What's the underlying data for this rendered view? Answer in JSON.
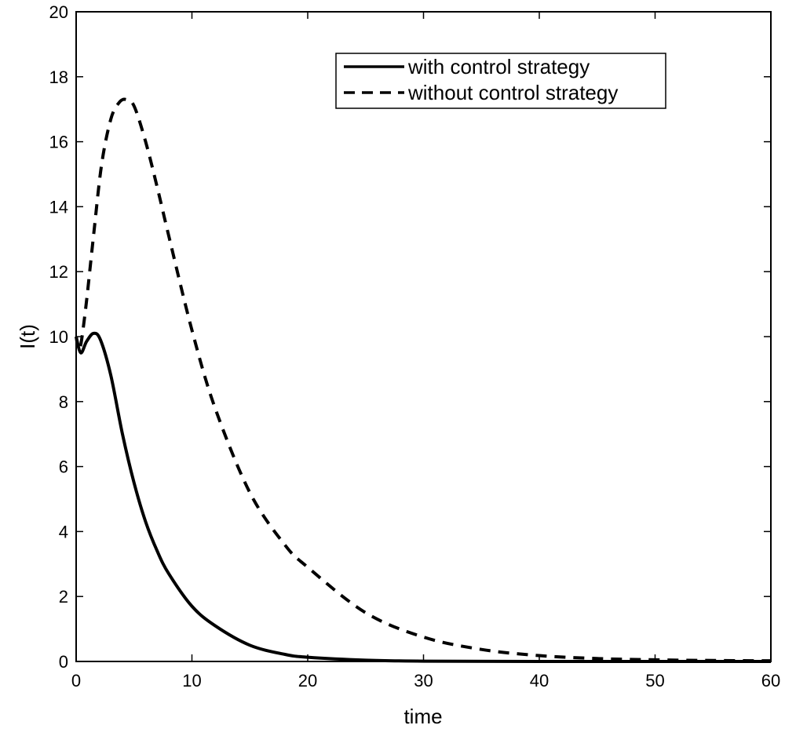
{
  "chart_data": {
    "type": "line",
    "title": "",
    "xlabel": "time",
    "ylabel": "I(t)",
    "xlim": [
      0,
      60
    ],
    "ylim": [
      0,
      20
    ],
    "xticks": [
      0,
      10,
      20,
      30,
      40,
      50,
      60
    ],
    "yticks": [
      0,
      2,
      4,
      6,
      8,
      10,
      12,
      14,
      16,
      18,
      20
    ],
    "grid": false,
    "legend_position": "top-right",
    "series": [
      {
        "name": "with control strategy",
        "style": "solid",
        "color": "#000000",
        "x": [
          0,
          0.4,
          0.9,
          1.5,
          2.1,
          3,
          4,
          5,
          6,
          7,
          8,
          10,
          12,
          15,
          18,
          20,
          25,
          30,
          40,
          50,
          60
        ],
        "y": [
          10,
          9.5,
          9.85,
          10.1,
          9.9,
          8.8,
          7.0,
          5.5,
          4.3,
          3.4,
          2.7,
          1.7,
          1.1,
          0.5,
          0.22,
          0.13,
          0.04,
          0.01,
          0.0,
          0.0,
          0.0
        ]
      },
      {
        "name": "without control strategy",
        "style": "dashed",
        "color": "#000000",
        "x": [
          0,
          0.3,
          0.8,
          1.5,
          2.2,
          3,
          3.7,
          4.3,
          5,
          6,
          7,
          8,
          10,
          12,
          15,
          18,
          20,
          25,
          30,
          35,
          40,
          45,
          50,
          55,
          60
        ],
        "y": [
          10,
          9.6,
          10.8,
          13.1,
          15.3,
          16.7,
          17.2,
          17.3,
          17.1,
          16.0,
          14.6,
          13.1,
          10.2,
          7.8,
          5.2,
          3.6,
          2.9,
          1.5,
          0.75,
          0.37,
          0.18,
          0.09,
          0.05,
          0.03,
          0.02
        ]
      }
    ]
  }
}
